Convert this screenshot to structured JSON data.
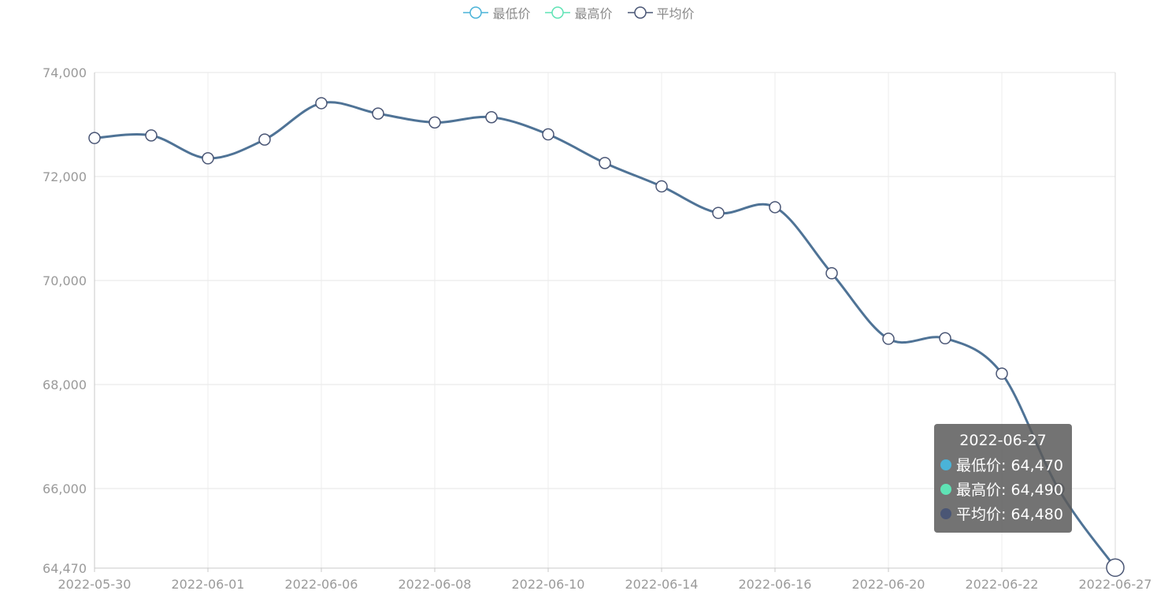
{
  "legend": [
    {
      "label": "最低价",
      "color": "#4ab3d8",
      "icon": "line-circle-icon"
    },
    {
      "label": "最高价",
      "color": "#5fe3b5",
      "icon": "line-circle-icon"
    },
    {
      "label": "平均价",
      "color": "#4a5675",
      "icon": "line-circle-icon"
    }
  ],
  "chart_data": {
    "type": "line",
    "x": [
      "2022-05-30",
      "2022-05-31",
      "2022-06-01",
      "2022-06-02",
      "2022-06-06",
      "2022-06-07",
      "2022-06-08",
      "2022-06-09",
      "2022-06-10",
      "2022-06-13",
      "2022-06-14",
      "2022-06-15",
      "2022-06-16",
      "2022-06-17",
      "2022-06-20",
      "2022-06-21",
      "2022-06-22",
      "2022-06-23",
      "2022-06-27"
    ],
    "x_tick_labels": [
      "2022-05-30",
      "2022-06-01",
      "2022-06-06",
      "2022-06-08",
      "2022-06-10",
      "2022-06-14",
      "2022-06-16",
      "2022-06-20",
      "2022-06-22",
      "2022-06-27"
    ],
    "y_tick_labels": [
      "64,470",
      "66,000",
      "68,000",
      "70,000",
      "72,000",
      "74,000"
    ],
    "ylim": [
      64470,
      74000
    ],
    "grid": true,
    "legend_position": "top-center",
    "series": [
      {
        "name": "最低价",
        "color": "#4ab3d8",
        "values": [
          72720,
          72770,
          72330,
          72690,
          73390,
          73190,
          73020,
          73120,
          72790,
          72240,
          71790,
          71280,
          71390,
          70120,
          68860,
          68870,
          68190,
          65970,
          64470
        ]
      },
      {
        "name": "最高价",
        "color": "#5fe3b5",
        "values": [
          72760,
          72810,
          72370,
          72730,
          73430,
          73230,
          73060,
          73160,
          72830,
          72280,
          71830,
          71320,
          71430,
          70160,
          68900,
          68910,
          68230,
          66010,
          64490
        ]
      },
      {
        "name": "平均价",
        "color": "#4f7396",
        "values": [
          72740,
          72790,
          72350,
          72710,
          73410,
          73210,
          73040,
          73140,
          72810,
          72260,
          71810,
          71300,
          71410,
          70140,
          68880,
          68890,
          68210,
          65990,
          64480
        ]
      }
    ]
  },
  "tooltip": {
    "title": "2022-06-27",
    "rows": [
      {
        "label": "最低价: 64,470",
        "color": "#4ab3d8"
      },
      {
        "label": "最高价: 64,490",
        "color": "#5fe3b5"
      },
      {
        "label": "平均价: 64,480",
        "color": "#4a5675"
      }
    ]
  }
}
